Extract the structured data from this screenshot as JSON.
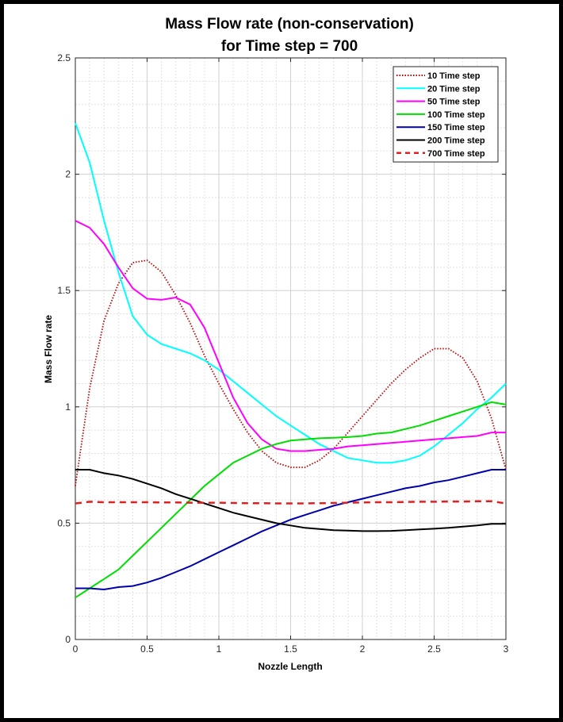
{
  "chart_data": {
    "type": "line",
    "title": [
      "Mass Flow rate (non-conservation)",
      "for Time step = 700"
    ],
    "xlabel": "Nozzle Length",
    "ylabel": "Mass Flow rate",
    "xlim": [
      0,
      3
    ],
    "ylim": [
      0,
      2.5
    ],
    "xticks": [
      "0",
      "0.5",
      "1",
      "1.5",
      "2",
      "2.5",
      "3"
    ],
    "yticks": [
      "0",
      "0.5",
      "1",
      "1.5",
      "2",
      "2.5"
    ],
    "grid": "major and minor",
    "legend_placement": "top-right",
    "x": [
      0,
      0.1,
      0.2,
      0.3,
      0.4,
      0.5,
      0.6,
      0.7,
      0.8,
      0.9,
      1.0,
      1.1,
      1.2,
      1.3,
      1.4,
      1.5,
      1.6,
      1.7,
      1.8,
      1.9,
      2.0,
      2.1,
      2.2,
      2.3,
      2.4,
      2.5,
      2.6,
      2.7,
      2.8,
      2.9,
      3.0
    ],
    "series": [
      {
        "name": "10 Time step",
        "color": "#c00000",
        "style": "dotted",
        "values": [
          0.66,
          1.08,
          1.37,
          1.53,
          1.62,
          1.63,
          1.58,
          1.48,
          1.36,
          1.22,
          1.1,
          0.99,
          0.89,
          0.81,
          0.76,
          0.74,
          0.74,
          0.77,
          0.82,
          0.89,
          0.96,
          1.03,
          1.1,
          1.16,
          1.21,
          1.25,
          1.25,
          1.21,
          1.11,
          0.95,
          0.73
        ]
      },
      {
        "name": "20 Time step",
        "color": "#00ffff",
        "style": "solid",
        "values": [
          2.22,
          2.05,
          1.8,
          1.58,
          1.39,
          1.31,
          1.27,
          1.25,
          1.23,
          1.2,
          1.16,
          1.11,
          1.06,
          1.01,
          0.96,
          0.92,
          0.88,
          0.84,
          0.81,
          0.78,
          0.77,
          0.76,
          0.76,
          0.77,
          0.79,
          0.83,
          0.88,
          0.93,
          0.99,
          1.04,
          1.1
        ]
      },
      {
        "name": "50 Time step",
        "color": "#ff00ff",
        "style": "solid",
        "values": [
          1.8,
          1.77,
          1.7,
          1.6,
          1.51,
          1.465,
          1.46,
          1.47,
          1.44,
          1.34,
          1.19,
          1.04,
          0.93,
          0.86,
          0.82,
          0.81,
          0.81,
          0.815,
          0.82,
          0.83,
          0.835,
          0.84,
          0.845,
          0.85,
          0.855,
          0.86,
          0.865,
          0.87,
          0.875,
          0.89,
          0.89
        ]
      },
      {
        "name": "100 Time step",
        "color": "#00dd00",
        "style": "solid",
        "values": [
          0.18,
          0.22,
          0.26,
          0.3,
          0.36,
          0.42,
          0.48,
          0.54,
          0.6,
          0.66,
          0.71,
          0.76,
          0.79,
          0.82,
          0.84,
          0.855,
          0.86,
          0.865,
          0.867,
          0.87,
          0.875,
          0.885,
          0.89,
          0.905,
          0.92,
          0.94,
          0.96,
          0.98,
          1.0,
          1.02,
          1.01
        ]
      },
      {
        "name": "150 Time step",
        "color": "#0000aa",
        "style": "solid",
        "values": [
          0.22,
          0.22,
          0.215,
          0.225,
          0.23,
          0.245,
          0.265,
          0.29,
          0.315,
          0.345,
          0.375,
          0.405,
          0.435,
          0.465,
          0.49,
          0.515,
          0.535,
          0.555,
          0.575,
          0.59,
          0.605,
          0.62,
          0.635,
          0.65,
          0.66,
          0.675,
          0.685,
          0.7,
          0.715,
          0.73,
          0.73
        ]
      },
      {
        "name": "200 Time step",
        "color": "#000000",
        "style": "solid",
        "values": [
          0.73,
          0.73,
          0.715,
          0.705,
          0.69,
          0.67,
          0.65,
          0.625,
          0.605,
          0.585,
          0.565,
          0.545,
          0.53,
          0.515,
          0.5,
          0.49,
          0.48,
          0.475,
          0.47,
          0.468,
          0.466,
          0.466,
          0.467,
          0.47,
          0.473,
          0.476,
          0.48,
          0.485,
          0.49,
          0.497,
          0.497
        ]
      },
      {
        "name": "700 Time step",
        "color": "#e02020",
        "style": "dashed",
        "values": [
          0.585,
          0.592,
          0.59,
          0.59,
          0.59,
          0.59,
          0.589,
          0.589,
          0.588,
          0.588,
          0.588,
          0.587,
          0.586,
          0.586,
          0.585,
          0.585,
          0.585,
          0.586,
          0.587,
          0.588,
          0.589,
          0.59,
          0.59,
          0.591,
          0.592,
          0.592,
          0.593,
          0.593,
          0.594,
          0.594,
          0.585
        ]
      }
    ]
  }
}
